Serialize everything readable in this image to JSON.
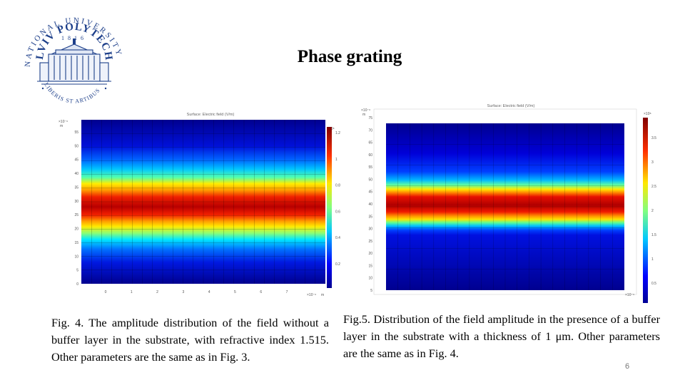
{
  "title": "Phase grating",
  "logo": {
    "arc_text": "NATIONAL UNIVERSITY",
    "main_text": "LVIV POLYTECHNIC",
    "year": "1816",
    "motto": "LIBERIS ST ARTIBUS",
    "icon": "university-building-icon"
  },
  "figures": [
    {
      "id": "fig4",
      "plot_title": "Surface: Electric field (V/m)",
      "y_unit_exp": "×10⁻⁶",
      "y_unit": "m",
      "x_unit_exp": "×10⁻⁶",
      "x_unit": "m",
      "scale_exp": "×10⁸",
      "y_ticks": [
        "55",
        "50",
        "45",
        "40",
        "35",
        "30",
        "25",
        "20",
        "15",
        "10",
        "5",
        "0"
      ],
      "x_ticks": [
        "0",
        "1",
        "2",
        "3",
        "4",
        "5",
        "6",
        "7"
      ],
      "scale_ticks": [
        "1.2",
        "1",
        "0.8",
        "0.6",
        "0.4",
        "0.2"
      ],
      "caption": "Fig. 4. The amplitude distribution of the field without a buffer layer in the substrate, with refractive index 1.515. Other parameters are the same as in Fig. 3."
    },
    {
      "id": "fig5",
      "plot_title": "Surface: Electric field (V/m)",
      "y_unit_exp": "×10⁻⁶",
      "y_unit": "m",
      "x_unit_exp": "×10⁻⁶",
      "scale_exp": "×10⁸",
      "y_ticks": [
        "75",
        "70",
        "65",
        "60",
        "55",
        "50",
        "45",
        "40",
        "35",
        "30",
        "25",
        "20",
        "15",
        "10",
        "5"
      ],
      "scale_ticks": [
        "3.5",
        "3",
        "2.5",
        "2",
        "1.5",
        "1",
        "0.5"
      ],
      "caption": "Fig.5. Distribution of the field amplitude in the presence of a buffer layer in the substrate with a thickness of 1 μm. Other parameters are the same as in Fig. 4."
    }
  ],
  "slide_number": "6"
}
